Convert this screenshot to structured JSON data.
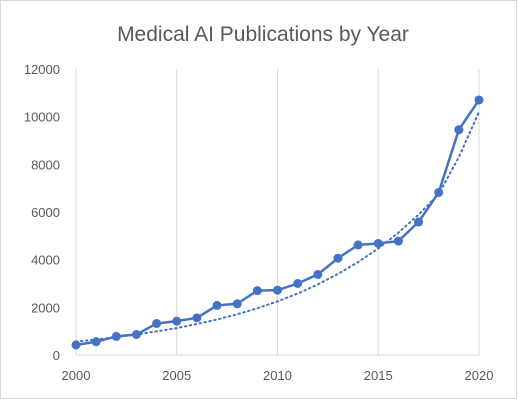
{
  "chart_data": {
    "type": "line",
    "title": "Medical AI Publications by Year",
    "xlabel": "",
    "ylabel": "",
    "xlim": [
      2000,
      2020
    ],
    "ylim": [
      0,
      12000
    ],
    "x_ticks": [
      2000,
      2005,
      2010,
      2015,
      2020
    ],
    "y_ticks": [
      0,
      2000,
      4000,
      6000,
      8000,
      10000,
      12000
    ],
    "grid": "vertical",
    "legend": "none",
    "x": [
      2000,
      2001,
      2002,
      2003,
      2004,
      2005,
      2006,
      2007,
      2008,
      2009,
      2010,
      2011,
      2012,
      2013,
      2014,
      2015,
      2016,
      2017,
      2018,
      2019,
      2020
    ],
    "series": [
      {
        "values": [
          420,
          560,
          780,
          860,
          1320,
          1420,
          1560,
          2080,
          2150,
          2700,
          2720,
          3000,
          3380,
          4060,
          4620,
          4680,
          4780,
          5580,
          6820,
          9450,
          10700
        ],
        "style": "solid line with circle markers",
        "color": "#4472c4"
      },
      {
        "values": [
          560,
          650,
          750,
          860,
          990,
          1130,
          1300,
          1490,
          1710,
          1960,
          2250,
          2580,
          2960,
          3400,
          3900,
          4470,
          5130,
          5890,
          6750,
          8300,
          10200
        ],
        "style": "dotted exponential trendline",
        "color": "#4472c4"
      }
    ],
    "colors": {
      "series": "#4472c4",
      "grid": "#d9d9d9",
      "text": "#595959",
      "border": "#d9d9d9"
    }
  }
}
